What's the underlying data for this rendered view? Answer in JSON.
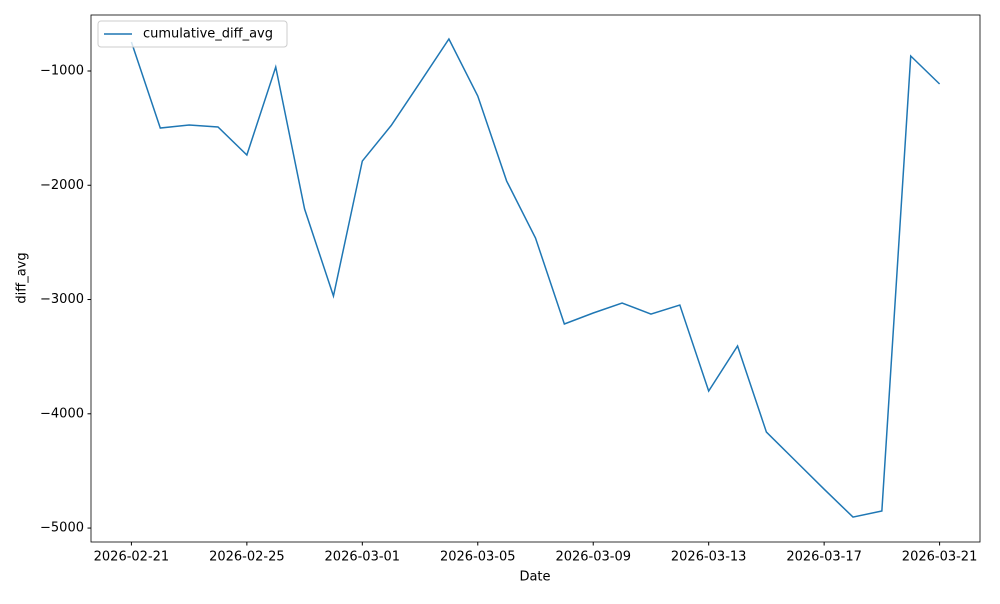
{
  "chart_data": {
    "type": "line",
    "xlabel": "Date",
    "ylabel": "diff_avg",
    "x": [
      "2026-02-21",
      "2026-02-22",
      "2026-02-23",
      "2026-02-24",
      "2026-02-25",
      "2026-02-26",
      "2026-02-27",
      "2026-02-28",
      "2026-03-01",
      "2026-03-02",
      "2026-03-03",
      "2026-03-04",
      "2026-03-05",
      "2026-03-06",
      "2026-03-07",
      "2026-03-08",
      "2026-03-09",
      "2026-03-10",
      "2026-03-11",
      "2026-03-12",
      "2026-03-13",
      "2026-03-14",
      "2026-03-15",
      "2026-03-16",
      "2026-03-17",
      "2026-03-18",
      "2026-03-19",
      "2026-03-20",
      "2026-03-21"
    ],
    "series": [
      {
        "name": "cumulative_diff_avg",
        "color": "#1f77b4",
        "values": [
          -746,
          -1499,
          -1473,
          -1490,
          -1735,
          -965,
          -2208,
          -2969,
          -1788,
          -1477,
          -1100,
          -720,
          -1219,
          -1963,
          -2462,
          -3214,
          -3118,
          -3031,
          -3127,
          -3048,
          -3801,
          -3407,
          -4160,
          -4410,
          -4660,
          -4904,
          -4851,
          -869,
          -1114
        ]
      }
    ],
    "xlim": [
      "2026-02-19T14:24",
      "2026-03-22T09:36"
    ],
    "xticks": [
      "2026-02-21",
      "2026-02-25",
      "2026-03-01",
      "2026-03-05",
      "2026-03-09",
      "2026-03-13",
      "2026-03-17",
      "2026-03-21"
    ],
    "ylim": [
      -5122,
      -510
    ],
    "yticks": [
      {
        "value": -5000,
        "label": "−5000"
      },
      {
        "value": -4000,
        "label": "−4000"
      },
      {
        "value": -3000,
        "label": "−3000"
      },
      {
        "value": -2000,
        "label": "−2000"
      },
      {
        "value": -1000,
        "label": "−1000"
      }
    ],
    "legend": "upper left"
  }
}
